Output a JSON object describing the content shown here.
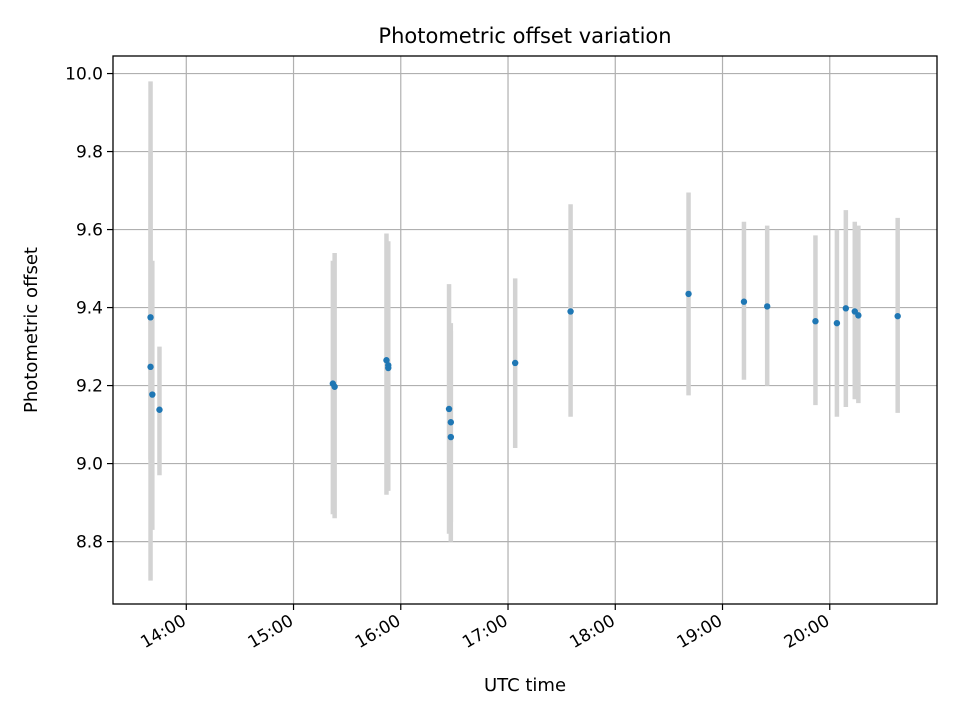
{
  "chart_data": {
    "type": "scatter",
    "title": "Photometric offset variation",
    "xlabel": "UTC time",
    "ylabel": "Photometric offset",
    "ylim": [
      8.64,
      10.045
    ],
    "xlim": [
      "13:19",
      "21:00"
    ],
    "x_ticks": [
      "14:00",
      "15:00",
      "16:00",
      "17:00",
      "18:00",
      "19:00",
      "20:00"
    ],
    "y_ticks": [
      "8.8",
      "9.0",
      "9.2",
      "9.4",
      "9.6",
      "9.8",
      "10.0"
    ],
    "grid": true,
    "legend": "none",
    "colors": {
      "point": "#1f77b4",
      "errorbar": "#d3d3d3"
    },
    "points": [
      {
        "x": "13:40",
        "y": 9.375,
        "yerr_low": 9.01,
        "yerr_high": 9.8
      },
      {
        "x": "13:40",
        "y": 9.248,
        "yerr_low": 8.7,
        "yerr_high": 9.98
      },
      {
        "x": "13:41",
        "y": 9.177,
        "yerr_low": 8.83,
        "yerr_high": 9.52
      },
      {
        "x": "13:45",
        "y": 9.138,
        "yerr_low": 8.97,
        "yerr_high": 9.3
      },
      {
        "x": "15:22",
        "y": 9.205,
        "yerr_low": 8.87,
        "yerr_high": 9.52
      },
      {
        "x": "15:23",
        "y": 9.197,
        "yerr_low": 8.86,
        "yerr_high": 9.54
      },
      {
        "x": "15:52",
        "y": 9.265,
        "yerr_low": 8.92,
        "yerr_high": 9.59
      },
      {
        "x": "15:53",
        "y": 9.252,
        "yerr_low": 8.93,
        "yerr_high": 9.57
      },
      {
        "x": "15:53",
        "y": 9.245,
        "yerr_low": 8.98,
        "yerr_high": 9.51
      },
      {
        "x": "16:27",
        "y": 9.14,
        "yerr_low": 8.82,
        "yerr_high": 9.46
      },
      {
        "x": "16:28",
        "y": 9.106,
        "yerr_low": 8.85,
        "yerr_high": 9.36
      },
      {
        "x": "16:28",
        "y": 9.068,
        "yerr_low": 8.8,
        "yerr_high": 9.34
      },
      {
        "x": "17:04",
        "y": 9.258,
        "yerr_low": 9.04,
        "yerr_high": 9.475
      },
      {
        "x": "17:35",
        "y": 9.39,
        "yerr_low": 9.12,
        "yerr_high": 9.665
      },
      {
        "x": "18:41",
        "y": 9.435,
        "yerr_low": 9.175,
        "yerr_high": 9.695
      },
      {
        "x": "19:12",
        "y": 9.415,
        "yerr_low": 9.215,
        "yerr_high": 9.62
      },
      {
        "x": "19:25",
        "y": 9.403,
        "yerr_low": 9.2,
        "yerr_high": 9.61
      },
      {
        "x": "19:52",
        "y": 9.365,
        "yerr_low": 9.15,
        "yerr_high": 9.585
      },
      {
        "x": "20:04",
        "y": 9.36,
        "yerr_low": 9.12,
        "yerr_high": 9.6
      },
      {
        "x": "20:09",
        "y": 9.398,
        "yerr_low": 9.145,
        "yerr_high": 9.65
      },
      {
        "x": "20:14",
        "y": 9.39,
        "yerr_low": 9.165,
        "yerr_high": 9.62
      },
      {
        "x": "20:16",
        "y": 9.38,
        "yerr_low": 9.155,
        "yerr_high": 9.61
      },
      {
        "x": "20:38",
        "y": 9.378,
        "yerr_low": 9.13,
        "yerr_high": 9.63
      }
    ]
  }
}
